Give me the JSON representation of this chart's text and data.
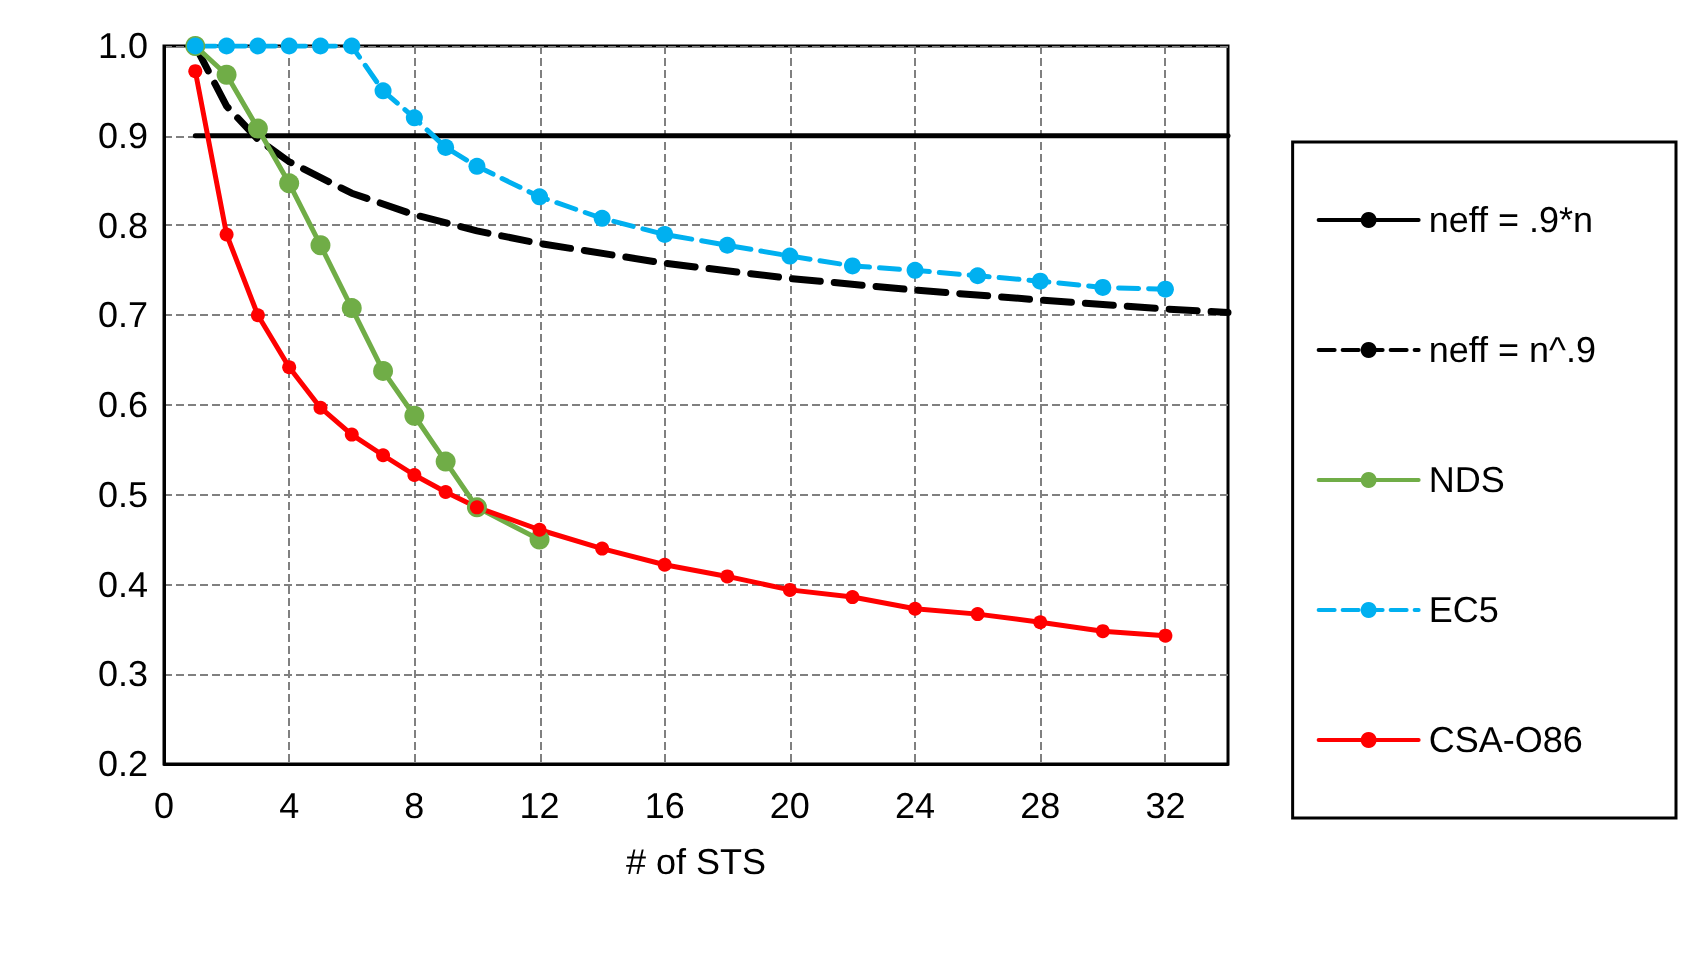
{
  "chart_data": {
    "type": "line",
    "xlabel": "# of STS",
    "xlim": [
      0,
      34
    ],
    "xticks": [
      0,
      4,
      8,
      12,
      16,
      20,
      24,
      28,
      32
    ],
    "ylim": [
      0.2,
      1.0
    ],
    "yticks": [
      {
        "value": 0.2,
        "label": "0.2"
      },
      {
        "value": 0.3,
        "label": "0.3"
      },
      {
        "value": 0.4,
        "label": "0.4"
      },
      {
        "value": 0.5,
        "label": "0.5"
      },
      {
        "value": 0.6,
        "label": "0.6"
      },
      {
        "value": 0.7,
        "label": "0.7"
      },
      {
        "value": 0.8,
        "label": "0.8"
      },
      {
        "value": 0.9,
        "label": "0.9"
      },
      {
        "value": 1.0,
        "label": "1.0"
      }
    ],
    "grid": true,
    "legend": "right",
    "series": [
      {
        "name": "neff = .9*n",
        "color": "#000000",
        "line_style": "solid",
        "marker": "none",
        "x": [
          1,
          34
        ],
        "values": [
          0.9,
          0.9
        ]
      },
      {
        "name": "neff = n^.9",
        "color": "#000000",
        "line_style": "dashed",
        "marker": "none",
        "x": [
          1,
          2,
          3,
          4,
          6,
          8,
          10,
          12,
          16,
          20,
          24,
          28,
          32,
          34
        ],
        "values": [
          1.0,
          0.933,
          0.896,
          0.871,
          0.836,
          0.812,
          0.794,
          0.78,
          0.758,
          0.741,
          0.728,
          0.717,
          0.707,
          0.703
        ]
      },
      {
        "name": "NDS",
        "color": "#70ad47",
        "line_style": "solid",
        "marker": "circle",
        "x": [
          1,
          2,
          3,
          4,
          5,
          6,
          7,
          8,
          9,
          10,
          12
        ],
        "values": [
          1.0,
          0.968,
          0.908,
          0.847,
          0.778,
          0.708,
          0.638,
          0.588,
          0.537,
          0.486,
          0.45
        ]
      },
      {
        "name": "EC5",
        "color": "#00b0f0",
        "line_style": "dashed",
        "marker": "circle",
        "x": [
          1,
          2,
          3,
          4,
          5,
          6,
          7,
          8,
          9,
          10,
          12,
          14,
          16,
          18,
          20,
          22,
          24,
          26,
          28,
          30,
          32
        ],
        "values": [
          1.0,
          1.0,
          1.0,
          1.0,
          1.0,
          1.0,
          0.95,
          0.92,
          0.887,
          0.866,
          0.832,
          0.808,
          0.79,
          0.778,
          0.766,
          0.755,
          0.75,
          0.744,
          0.738,
          0.731,
          0.729
        ]
      },
      {
        "name": "CSA-O86",
        "color": "#ff0000",
        "line_style": "solid",
        "marker": "circle",
        "x": [
          1,
          2,
          3,
          4,
          5,
          6,
          7,
          8,
          9,
          10,
          12,
          14,
          16,
          18,
          20,
          22,
          24,
          26,
          28,
          30,
          32
        ],
        "values": [
          0.972,
          0.79,
          0.7,
          0.642,
          0.597,
          0.567,
          0.544,
          0.522,
          0.503,
          0.486,
          0.461,
          0.44,
          0.422,
          0.409,
          0.394,
          0.386,
          0.373,
          0.367,
          0.358,
          0.348,
          0.343
        ]
      }
    ]
  }
}
